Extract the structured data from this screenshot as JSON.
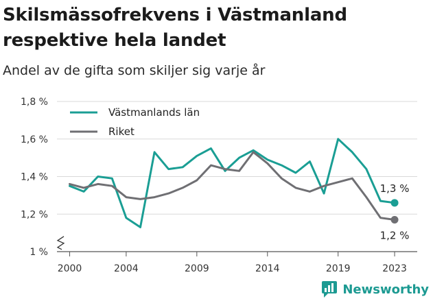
{
  "title": "Skilsmässofrekvens i Västmanland respektive hela landet",
  "subtitle": "Andel av de gifta som skiljer sig varje år",
  "brand": "Newsworthy",
  "chart_data": {
    "type": "line",
    "x": [
      2000,
      2001,
      2002,
      2003,
      2004,
      2005,
      2006,
      2007,
      2008,
      2009,
      2010,
      2011,
      2012,
      2013,
      2014,
      2015,
      2016,
      2017,
      2018,
      2019,
      2020,
      2021,
      2022,
      2023
    ],
    "series": [
      {
        "name": "Västmanlands län",
        "color": "#1a9e94",
        "values": [
          1.35,
          1.32,
          1.4,
          1.39,
          1.18,
          1.13,
          1.53,
          1.44,
          1.45,
          1.51,
          1.55,
          1.43,
          1.5,
          1.54,
          1.49,
          1.46,
          1.42,
          1.48,
          1.31,
          1.6,
          1.53,
          1.44,
          1.27,
          1.26
        ]
      },
      {
        "name": "Riket",
        "color": "#6f6f73",
        "values": [
          1.36,
          1.34,
          1.36,
          1.35,
          1.29,
          1.28,
          1.29,
          1.31,
          1.34,
          1.38,
          1.46,
          1.44,
          1.43,
          1.53,
          1.47,
          1.39,
          1.34,
          1.32,
          1.35,
          1.37,
          1.39,
          1.29,
          1.18,
          1.17
        ]
      }
    ],
    "ylim": [
      1.0,
      1.8
    ],
    "yticks": [
      1.0,
      1.2,
      1.4,
      1.6,
      1.8
    ],
    "ytick_labels": [
      "1 %",
      "1,2 %",
      "1,4 %",
      "1,6 %",
      "1,8 %"
    ],
    "xticks": [
      2000,
      2004,
      2009,
      2014,
      2019,
      2023
    ],
    "xtick_labels": [
      "2000",
      "2004",
      "2009",
      "2014",
      "2019",
      "2023"
    ],
    "end_labels": [
      "1,3 %",
      "1,2 %"
    ],
    "grid": "horizontal",
    "legend": "top-left"
  }
}
